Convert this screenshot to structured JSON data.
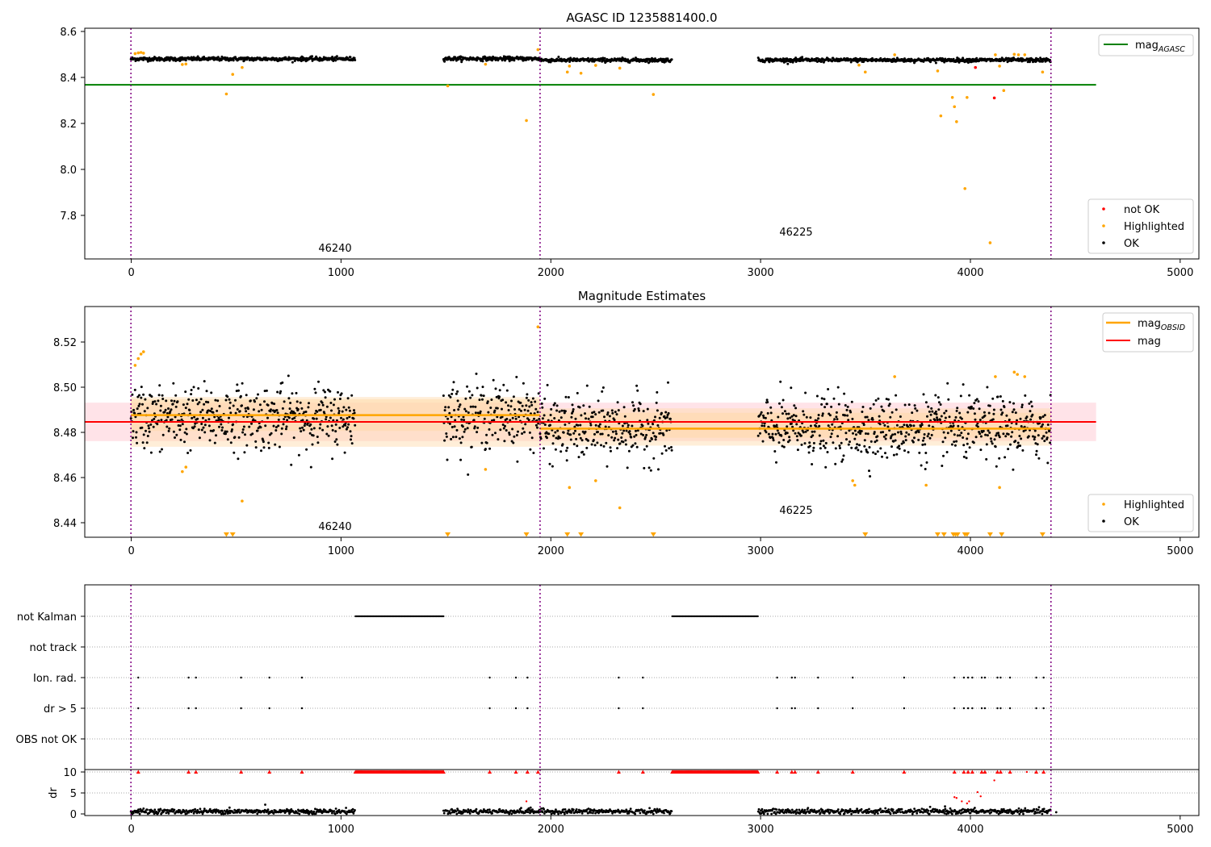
{
  "figure": {
    "panels": {
      "top": {
        "title": "AGASC ID 1235881400.0",
        "xticks": [
          0,
          1000,
          2000,
          3000,
          4000,
          5000
        ],
        "yticks": [
          "8.6",
          "8.4",
          "8.2",
          "8.0",
          "7.8"
        ],
        "obsid_labels": [
          "46240",
          "46225"
        ],
        "legend_line": {
          "base": "mag",
          "sub": "AGASC"
        },
        "legend_points": [
          "not OK",
          "Highlighted",
          "OK"
        ]
      },
      "middle": {
        "title": "Magnitude Estimates",
        "xticks": [
          0,
          1000,
          2000,
          3000,
          4000,
          5000
        ],
        "yticks": [
          "8.52",
          "8.50",
          "8.48",
          "8.46",
          "8.44"
        ],
        "obsid_labels": [
          "46240",
          "46225"
        ],
        "legend_lines": [
          {
            "base": "mag",
            "sub": "OBSID"
          },
          {
            "base": "mag",
            "sub": ""
          }
        ],
        "legend_points": [
          "Highlighted",
          "OK"
        ]
      },
      "flags": {
        "yticks": [
          "not Kalman",
          "not track",
          "Ion. rad.",
          "dr > 5",
          "OBS not OK"
        ]
      },
      "dr": {
        "ylabel": "dr",
        "yticks": [
          "10",
          "5",
          "0"
        ],
        "xticks": [
          0,
          1000,
          2000,
          3000,
          4000,
          5000
        ]
      }
    }
  },
  "chart_data": [
    {
      "type": "scatter",
      "title": "AGASC ID 1235881400.0",
      "xlabel": "",
      "ylabel": "",
      "xlim": [
        -220,
        5090
      ],
      "ylim": [
        7.62,
        8.62
      ],
      "colors": {
        "ok": "#000000",
        "highlighted": "#ffa500",
        "not_ok": "#ff0000",
        "mag_agasc": "#008000",
        "obs_boundary": "#800080"
      },
      "mag_agasc": 8.375,
      "mag_agasc_x_range": [
        -220,
        4600
      ],
      "obs_boundaries": [
        0,
        1950,
        4385
      ],
      "observations": [
        {
          "obsid": "46240",
          "x_range": [
            0,
            1950
          ],
          "label_at": [
            975,
            7.65
          ]
        },
        {
          "obsid": "46225",
          "x_range": [
            1950,
            4385
          ],
          "label_at": [
            3170,
            7.72
          ]
        }
      ],
      "ok_segments": [
        {
          "x_range": [
            0,
            1070
          ],
          "mean": 8.487,
          "spread": 0.007
        },
        {
          "x_range": [
            1490,
            1950
          ],
          "mean": 8.488,
          "spread": 0.007
        },
        {
          "x_range": [
            1950,
            2580
          ],
          "mean": 8.482,
          "spread": 0.007
        },
        {
          "x_range": [
            2990,
            4385
          ],
          "mean": 8.482,
          "spread": 0.007
        }
      ],
      "highlighted_points": [
        [
          20,
          8.51
        ],
        [
          35,
          8.513
        ],
        [
          48,
          8.515
        ],
        [
          60,
          8.512
        ],
        [
          245,
          8.463
        ],
        [
          262,
          8.465
        ],
        [
          455,
          8.335
        ],
        [
          485,
          8.42
        ],
        [
          530,
          8.45
        ],
        [
          1510,
          8.37
        ],
        [
          1690,
          8.464
        ],
        [
          1885,
          8.22
        ],
        [
          1940,
          8.527
        ],
        [
          2080,
          8.43
        ],
        [
          2090,
          8.456
        ],
        [
          2145,
          8.425
        ],
        [
          2215,
          8.459
        ],
        [
          2330,
          8.447
        ],
        [
          2490,
          8.333
        ],
        [
          3470,
          8.46
        ],
        [
          3500,
          8.43
        ],
        [
          3640,
          8.505
        ],
        [
          3845,
          8.435
        ],
        [
          3860,
          8.24
        ],
        [
          3915,
          8.32
        ],
        [
          3925,
          8.28
        ],
        [
          3935,
          8.215
        ],
        [
          3985,
          8.32
        ],
        [
          3975,
          7.925
        ],
        [
          4095,
          7.69
        ],
        [
          4120,
          8.505
        ],
        [
          4160,
          8.35
        ],
        [
          4140,
          8.456
        ],
        [
          4210,
          8.507
        ],
        [
          4230,
          8.505
        ],
        [
          4260,
          8.505
        ],
        [
          4345,
          8.43
        ]
      ],
      "not_ok_points": [
        [
          4025,
          8.45
        ],
        [
          4115,
          8.318
        ]
      ]
    },
    {
      "type": "scatter",
      "title": "Magnitude Estimates",
      "xlabel": "",
      "ylabel": "",
      "xlim": [
        -220,
        5090
      ],
      "ylim": [
        8.434,
        8.536
      ],
      "colors": {
        "ok": "#000000",
        "highlighted": "#ffa500",
        "mag_obsid": "#ffa500",
        "mag": "#ff0000",
        "mag_band": "#ffc0cb",
        "obsid_band": "#ffd9a8"
      },
      "mag": 8.485,
      "mag_band": [
        8.4765,
        8.4935
      ],
      "mag_x_range": [
        -220,
        4600
      ],
      "mag_obsid": [
        {
          "obsid": "46240",
          "x_range": [
            0,
            1950
          ],
          "value": 8.488,
          "band_inner": [
            8.481,
            8.495
          ],
          "band_outer": [
            8.474,
            8.496
          ]
        },
        {
          "obsid": "46225",
          "x_range": [
            1950,
            4385
          ],
          "value": 8.482,
          "band_inner": [
            8.478,
            8.489
          ],
          "band_outer": [
            8.4745,
            8.491
          ]
        }
      ],
      "obs_boundaries": [
        0,
        1950,
        4385
      ],
      "observations": [
        {
          "obsid": "46240",
          "label_at": [
            975,
            8.436
          ]
        },
        {
          "obsid": "46225",
          "label_at": [
            3170,
            8.443
          ]
        }
      ],
      "ok_segments": [
        {
          "x_range": [
            0,
            1070
          ],
          "mean": 8.487,
          "spread": 0.007
        },
        {
          "x_range": [
            1490,
            1950
          ],
          "mean": 8.488,
          "spread": 0.007
        },
        {
          "x_range": [
            1950,
            2580
          ],
          "mean": 8.482,
          "spread": 0.007
        },
        {
          "x_range": [
            2990,
            4385
          ],
          "mean": 8.482,
          "spread": 0.007
        }
      ],
      "highlighted_points": [
        [
          20,
          8.51
        ],
        [
          35,
          8.513
        ],
        [
          48,
          8.515
        ],
        [
          60,
          8.516
        ],
        [
          245,
          8.463
        ],
        [
          262,
          8.465
        ],
        [
          530,
          8.45
        ],
        [
          1690,
          8.464
        ],
        [
          1940,
          8.527
        ],
        [
          2090,
          8.456
        ],
        [
          2215,
          8.459
        ],
        [
          2330,
          8.447
        ],
        [
          3440,
          8.459
        ],
        [
          3450,
          8.457
        ],
        [
          3640,
          8.505
        ],
        [
          3790,
          8.457
        ],
        [
          4120,
          8.505
        ],
        [
          4140,
          8.456
        ],
        [
          4210,
          8.507
        ],
        [
          4225,
          8.506
        ],
        [
          4260,
          8.505
        ]
      ],
      "off_scale_markers_x": [
        455,
        485,
        1510,
        1885,
        2080,
        2145,
        2490,
        3500,
        3845,
        3875,
        3920,
        3930,
        3940,
        3975,
        3985,
        4095,
        4150,
        4345
      ]
    },
    {
      "type": "scatter",
      "title": "",
      "xlabel": "",
      "ylabel": "",
      "categories": [
        "not Kalman",
        "not track",
        "Ion. rad.",
        "dr > 5",
        "OBS not OK"
      ],
      "xlim": [
        -220,
        5090
      ],
      "not_kalman_ranges": [
        [
          1070,
          1490
        ],
        [
          2580,
          2990
        ]
      ],
      "ion_rad_x": [
        35,
        275,
        310,
        525,
        660,
        815,
        1710,
        1835,
        1890,
        2325,
        2440,
        3080,
        3150,
        3165,
        3275,
        3440,
        3685,
        3925,
        3970,
        3990,
        4010,
        4055,
        4070,
        4130,
        4145,
        4190,
        4315,
        4350
      ],
      "dr_gt5_x": [
        35,
        275,
        310,
        525,
        660,
        815,
        1710,
        1835,
        1890,
        2325,
        2440,
        3080,
        3150,
        3165,
        3275,
        3440,
        3685,
        3925,
        3970,
        3990,
        4010,
        4055,
        4070,
        4130,
        4145,
        4190,
        4315,
        4350
      ],
      "obs_not_ok_x": []
    },
    {
      "type": "scatter",
      "title": "",
      "xlabel": "",
      "ylabel": "dr",
      "xlim": [
        -220,
        5090
      ],
      "ylim": [
        -0.5,
        10.5
      ],
      "clip_value": 10,
      "ok_segments": [
        {
          "x_range": [
            0,
            1070
          ],
          "mean": 0.6,
          "spread": 0.5
        },
        {
          "x_range": [
            1490,
            1950
          ],
          "mean": 0.6,
          "spread": 0.5
        },
        {
          "x_range": [
            1950,
            2580
          ],
          "mean": 0.6,
          "spread": 0.5
        },
        {
          "x_range": [
            2990,
            4385
          ],
          "mean": 0.6,
          "spread": 0.5
        }
      ],
      "ok_extra_points": [
        [
          470,
          1.5
        ],
        [
          640,
          2.2
        ],
        [
          1905,
          1.5
        ],
        [
          3880,
          1.8
        ],
        [
          3990,
          0.9
        ],
        [
          4150,
          1.1
        ],
        [
          4410,
          0.4
        ]
      ],
      "red_points": [
        [
          1885,
          3.0
        ],
        [
          3925,
          4.0
        ],
        [
          3935,
          3.8
        ],
        [
          3960,
          3.0
        ],
        [
          3985,
          2.5
        ],
        [
          3995,
          3.0
        ],
        [
          4035,
          5.2
        ],
        [
          4050,
          4.2
        ],
        [
          4115,
          8.0
        ],
        [
          4270,
          10.0
        ]
      ],
      "clipped_markers_x": [
        35,
        275,
        310,
        525,
        660,
        815,
        1710,
        1835,
        1890,
        1940,
        2325,
        2440,
        3080,
        3150,
        3165,
        3275,
        3440,
        3685,
        3925,
        3970,
        3990,
        4010,
        4055,
        4070,
        4130,
        4145,
        4190,
        4315,
        4350
      ],
      "clipped_ranges": [
        [
          1070,
          1490
        ],
        [
          2580,
          2990
        ]
      ]
    }
  ]
}
